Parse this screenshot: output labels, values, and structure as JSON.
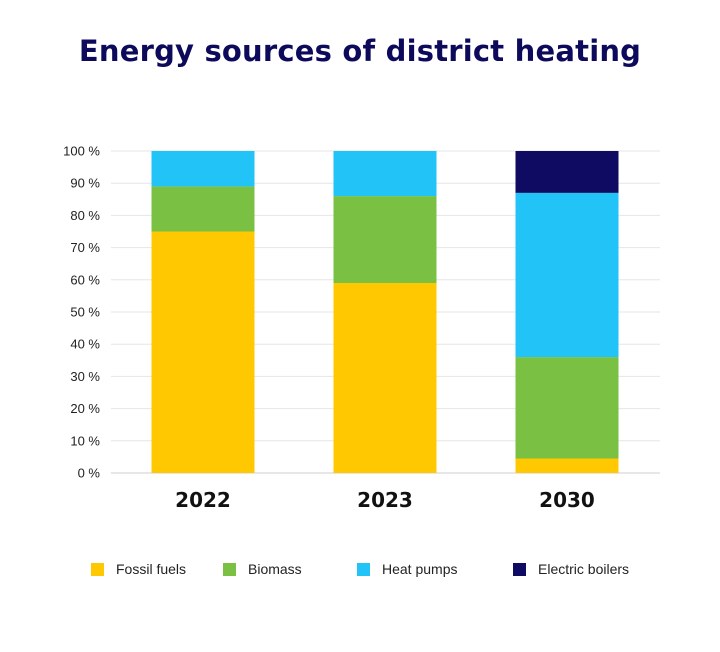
{
  "chart_data": {
    "type": "bar",
    "stacked": true,
    "title": "Energy sources of district heating",
    "categories": [
      "2022",
      "2023",
      "2030"
    ],
    "series": [
      {
        "name": "Fossil fuels",
        "color": "#ffc800",
        "values": [
          75,
          59,
          4.5
        ]
      },
      {
        "name": "Biomass",
        "color": "#7ac143",
        "values": [
          14,
          27,
          31.5
        ]
      },
      {
        "name": "Heat pumps",
        "color": "#22c4f8",
        "values": [
          11,
          14,
          51
        ]
      },
      {
        "name": "Electric boilers",
        "color": "#0f0a62",
        "values": [
          0,
          0,
          13
        ]
      }
    ],
    "y_ticks": [
      "0 %",
      "10 %",
      "20 %",
      "30 %",
      "40 %",
      "50 %",
      "60 %",
      "70 %",
      "80 %",
      "90 %",
      "100 %"
    ],
    "ylim": [
      0,
      100
    ],
    "grid": true,
    "legend_position": "bottom"
  }
}
